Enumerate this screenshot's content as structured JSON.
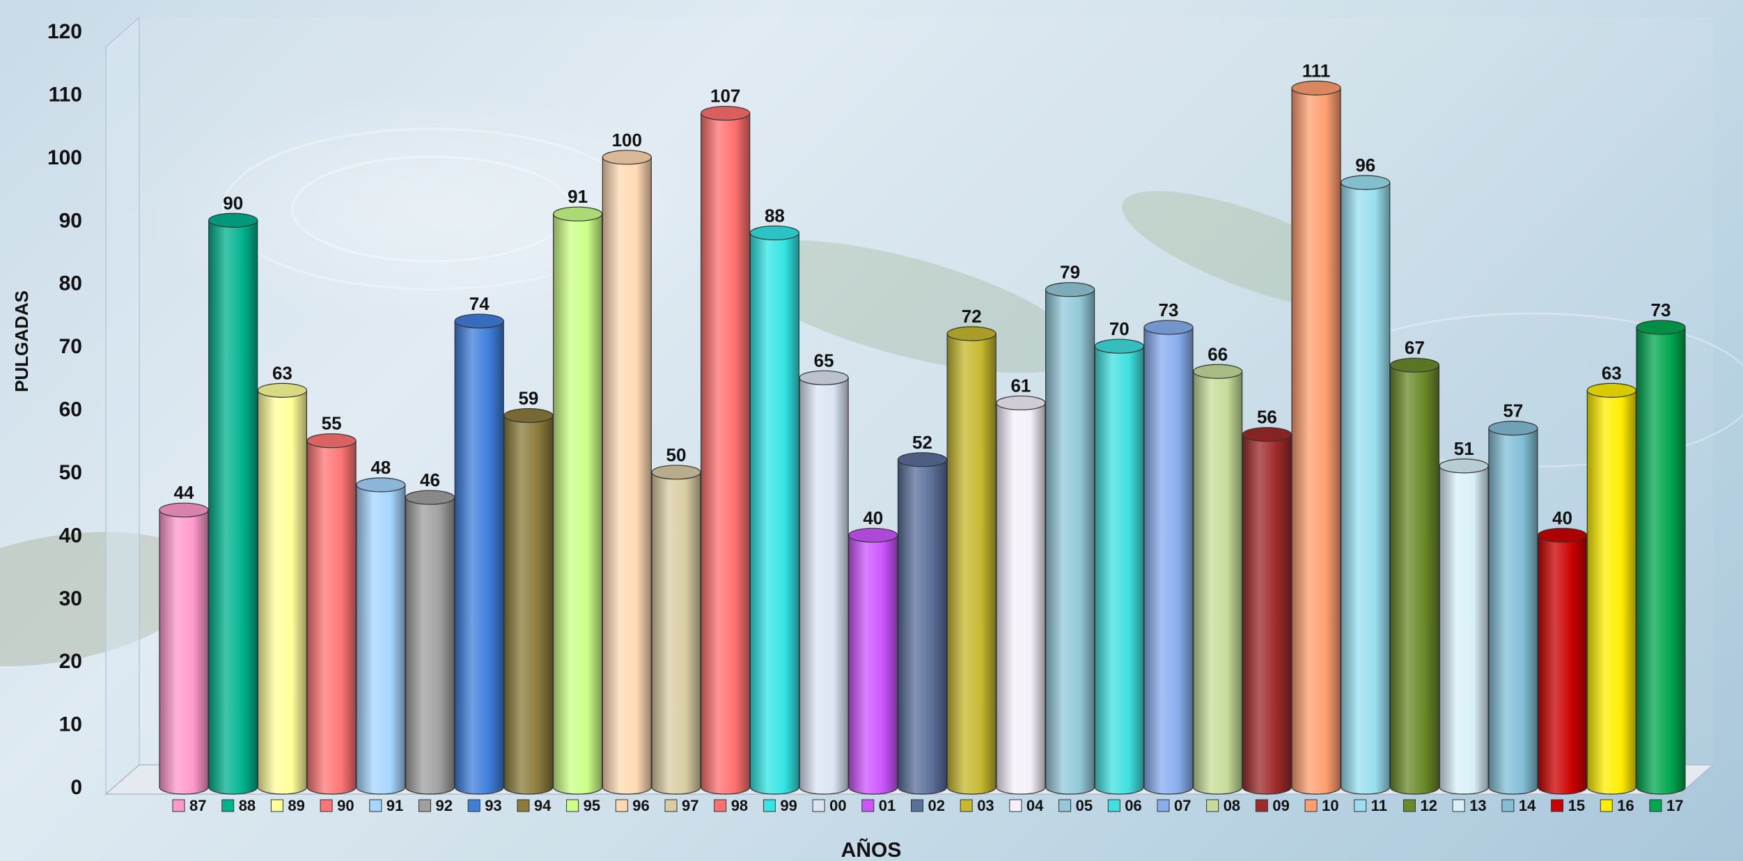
{
  "chart_data": {
    "type": "bar",
    "xlabel": "AÑOS",
    "ylabel": "PULGADAS",
    "ylim": [
      0,
      120
    ],
    "yticks": [
      0,
      10,
      20,
      30,
      40,
      50,
      60,
      70,
      80,
      90,
      100,
      110,
      120
    ],
    "legend": "bottom",
    "grid": false,
    "bar_shape": "cylinder",
    "categories": [
      "87",
      "88",
      "89",
      "90",
      "91",
      "92",
      "93",
      "94",
      "95",
      "96",
      "97",
      "98",
      "99",
      "00",
      "01",
      "02",
      "03",
      "04",
      "05",
      "06",
      "07",
      "08",
      "09",
      "10",
      "11",
      "12",
      "13",
      "14",
      "15",
      "16",
      "17"
    ],
    "values": [
      44,
      90,
      63,
      55,
      48,
      46,
      74,
      59,
      91,
      100,
      50,
      107,
      88,
      65,
      40,
      52,
      72,
      61,
      79,
      70,
      73,
      66,
      56,
      111,
      96,
      67,
      51,
      57,
      40,
      63,
      73
    ],
    "colors": [
      "#ff99cc",
      "#00b38f",
      "#ffff99",
      "#ff7575",
      "#a5d6ff",
      "#a0a0a0",
      "#3f7fdc",
      "#8b7c3c",
      "#ccff88",
      "#ffd9b3",
      "#d9cca3",
      "#ff7070",
      "#33e6e6",
      "#dbe4f5",
      "#cc55ff",
      "#5a6f99",
      "#c7b82e",
      "#f5f0fa",
      "#93cad9",
      "#40e0e0",
      "#88aef0",
      "#c6dc99",
      "#9e2a2a",
      "#ff9f70",
      "#99dff0",
      "#6a8a2a",
      "#d9f0f8",
      "#82bfd6",
      "#cc0000",
      "#ffee00",
      "#00a850"
    ]
  }
}
